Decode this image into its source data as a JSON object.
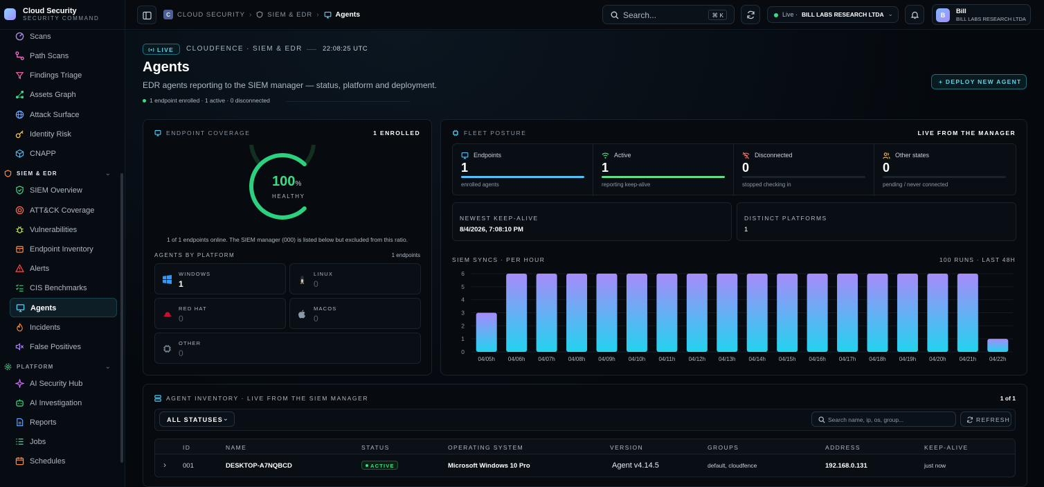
{
  "brand": {
    "title": "Cloud Security",
    "subtitle": "SECURITY COMMAND"
  },
  "sidebar": {
    "items_top": [
      {
        "label": "Scans",
        "icon": "radar-icon"
      },
      {
        "label": "Path Scans",
        "icon": "path-icon"
      },
      {
        "label": "Findings Triage",
        "icon": "triage-icon"
      },
      {
        "label": "Assets Graph",
        "icon": "graph-icon"
      },
      {
        "label": "Attack Surface",
        "icon": "globe-icon"
      },
      {
        "label": "Identity Risk",
        "icon": "key-icon"
      },
      {
        "label": "CNAPP",
        "icon": "cube-icon"
      }
    ],
    "section_siem": {
      "label": "SIEM & EDR",
      "color": "#ff8a3d"
    },
    "items_siem": [
      {
        "label": "SIEM Overview",
        "icon": "shield-icon"
      },
      {
        "label": "ATT&CK Coverage",
        "icon": "target-icon"
      },
      {
        "label": "Vulnerabilities",
        "icon": "bug-icon"
      },
      {
        "label": "Endpoint Inventory",
        "icon": "box-icon"
      },
      {
        "label": "Alerts",
        "icon": "alert-icon"
      },
      {
        "label": "CIS Benchmarks",
        "icon": "checklist-icon"
      },
      {
        "label": "Agents",
        "icon": "monitor-icon",
        "active": true
      },
      {
        "label": "Incidents",
        "icon": "flame-icon"
      },
      {
        "label": "False Positives",
        "icon": "mute-icon"
      }
    ],
    "section_platform": {
      "label": "PLATFORM",
      "color": "#3ddc84"
    },
    "items_platform": [
      {
        "label": "AI Security Hub",
        "icon": "sparkle-icon"
      },
      {
        "label": "AI Investigation",
        "icon": "bot-icon"
      },
      {
        "label": "Reports",
        "icon": "report-icon"
      },
      {
        "label": "Jobs",
        "icon": "list-icon"
      },
      {
        "label": "Schedules",
        "icon": "calendar-icon"
      }
    ]
  },
  "topbar": {
    "crumb_icon": "C",
    "crumb_1": "CLOUD SECURITY",
    "crumb_2": "SIEM & EDR",
    "crumb_3": "Agents",
    "search_placeholder": "Search...",
    "search_shortcut": "⌘ K",
    "tenant_live": "Live ·",
    "tenant_org": "BILL LABS RESEARCH LTDA",
    "user_initial": "B",
    "user_name": "Bill",
    "user_org": "BILL LABS RESEARCH LTDA"
  },
  "header": {
    "live": "LIVE",
    "context": "CLOUDFENCE · SIEM & EDR",
    "time": "22:08:25 UTC",
    "title": "Agents",
    "subtitle": "EDR agents reporting to the SIEM manager — status, platform and deployment.",
    "enrollment": "1 endpoint enrolled · 1 active · 0 disconnected",
    "deploy_button": "+ DEPLOY NEW AGENT"
  },
  "coverage": {
    "title": "ENDPOINT COVERAGE",
    "enrolled": "1 ENROLLED",
    "value": "100",
    "value_fraction": 1.0,
    "pct_sign": "%",
    "state": "HEALTHY",
    "note": "1 of 1 endpoints online. The SIEM manager (000) is listed below but excluded from this ratio.",
    "platforms_title": "AGENTS BY PLATFORM",
    "platforms_count": "1 endpoints",
    "platforms": [
      {
        "name": "WINDOWS",
        "value": "1",
        "icon": "windows-icon"
      },
      {
        "name": "LINUX",
        "value": "0",
        "icon": "linux-icon"
      },
      {
        "name": "RED HAT",
        "value": "0",
        "icon": "redhat-icon"
      },
      {
        "name": "MACOS",
        "value": "0",
        "icon": "apple-icon"
      },
      {
        "name": "OTHER",
        "value": "0",
        "icon": "chip-icon"
      }
    ]
  },
  "fleet": {
    "title": "FLEET POSTURE",
    "source": "LIVE FROM THE MANAGER",
    "stats": [
      {
        "label": "Endpoints",
        "value": "1",
        "sub": "enrolled agents",
        "fill": 1.0,
        "color": "#4fc3f7",
        "icon": "monitor-icon"
      },
      {
        "label": "Active",
        "value": "1",
        "sub": "reporting keep-alive",
        "fill": 1.0,
        "color": "#5ee08a",
        "icon": "wifi-icon"
      },
      {
        "label": "Disconnected",
        "value": "0",
        "sub": "stopped checking in",
        "fill": 0.0,
        "color": "#ff6b5a",
        "icon": "wifi-off-icon"
      },
      {
        "label": "Other states",
        "value": "0",
        "sub": "pending / never connected",
        "fill": 0.0,
        "color": "#ffb74d",
        "icon": "users-icon"
      }
    ],
    "newest_label": "NEWEST KEEP-ALIVE",
    "newest_value": "8/4/2026, 7:08:10 PM",
    "platforms_label": "DISTINCT PLATFORMS",
    "platforms_value": "1"
  },
  "chart_data": {
    "type": "bar",
    "title": "SIEM SYNCS · PER HOUR",
    "subtitle": "100 RUNS · LAST 48H",
    "categories": [
      "04/05h",
      "04/06h",
      "04/07h",
      "04/08h",
      "04/09h",
      "04/10h",
      "04/11h",
      "04/12h",
      "04/13h",
      "04/14h",
      "04/15h",
      "04/16h",
      "04/17h",
      "04/18h",
      "04/19h",
      "04/20h",
      "04/21h",
      "04/22h"
    ],
    "values": [
      3,
      6,
      6,
      6,
      6,
      6,
      6,
      6,
      6,
      6,
      6,
      6,
      6,
      6,
      6,
      6,
      6,
      1
    ],
    "ylim": [
      0,
      6
    ],
    "yticks": [
      0,
      1,
      2,
      3,
      4,
      5,
      6
    ],
    "grid": true,
    "colors": {
      "top": "#a78bfa",
      "bottom": "#22d3ee"
    }
  },
  "inventory": {
    "title": "AGENT INVENTORY · LIVE FROM THE SIEM MANAGER",
    "pagination": "1 of 1",
    "status_filter": "ALL STATUSES",
    "search_placeholder": "Search name, ip, os, group...",
    "refresh": "REFRESH",
    "columns": [
      "ID",
      "NAME",
      "STATUS",
      "OPERATING SYSTEM",
      "VERSION",
      "GROUPS",
      "ADDRESS",
      "KEEP-ALIVE"
    ],
    "rows": [
      {
        "id": "001",
        "name": "DESKTOP-A7NQBCD",
        "status": "ACTIVE",
        "os": "Microsoft Windows 10 Pro",
        "version": "Agent v4.14.5",
        "groups": "default, cloudfence",
        "address": "192.168.0.131",
        "keepalive": "just now"
      }
    ]
  }
}
